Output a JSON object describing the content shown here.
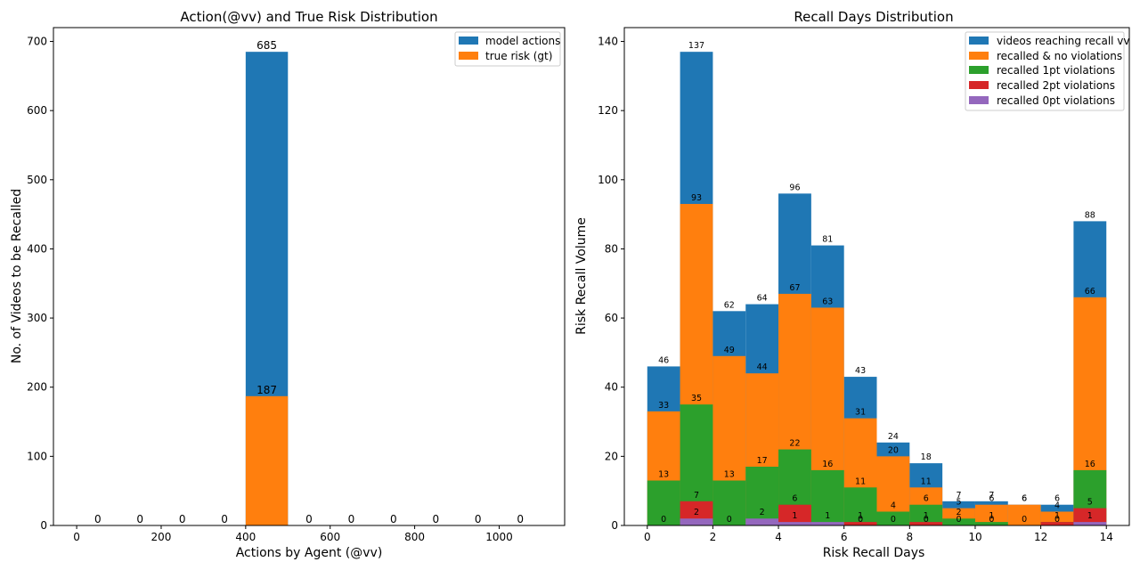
{
  "colors": {
    "blue": "#1f77b4",
    "orange": "#ff7f0e",
    "green": "#2ca02c",
    "red": "#d62728",
    "purple": "#9467bd"
  },
  "chart_data": [
    {
      "type": "bar",
      "title": "Action(@vv) and True Risk Distribution",
      "xlabel": "Actions by Agent (@vv)",
      "ylabel": "No. of Videos to be Recalled",
      "xlim": [
        -55,
        1155
      ],
      "ylim": [
        0,
        720
      ],
      "xticks": [
        0,
        200,
        400,
        600,
        800,
        1000,
        1200
      ],
      "yticks": [
        0,
        100,
        200,
        300,
        400,
        500,
        600,
        700
      ],
      "xtick_labels": [
        "0",
        "200",
        "400",
        "600",
        "800",
        "1000"
      ],
      "ytick_labels": [
        "0",
        "100",
        "200",
        "300",
        "400",
        "500",
        "600",
        "700"
      ],
      "bin_edges": [
        0,
        100,
        200,
        300,
        400,
        500,
        600,
        700,
        800,
        900,
        1000,
        1100
      ],
      "legend_position": "top-right",
      "series": [
        {
          "name": "model actions",
          "color_key": "blue",
          "values": [
            0,
            0,
            0,
            0,
            685,
            0,
            0,
            0,
            0,
            0,
            0
          ]
        },
        {
          "name": "true risk (gt)",
          "color_key": "orange",
          "values": [
            0,
            0,
            0,
            0,
            187,
            0,
            0,
            0,
            0,
            0,
            0
          ]
        }
      ],
      "data_labels": [
        {
          "x": 50,
          "y": 0,
          "text": "0"
        },
        {
          "x": 150,
          "y": 0,
          "text": "0"
        },
        {
          "x": 250,
          "y": 0,
          "text": "0"
        },
        {
          "x": 350,
          "y": 0,
          "text": "0"
        },
        {
          "x": 450,
          "y": 685,
          "text": "685"
        },
        {
          "x": 450,
          "y": 187,
          "text": "187"
        },
        {
          "x": 550,
          "y": 0,
          "text": "0"
        },
        {
          "x": 650,
          "y": 0,
          "text": "0"
        },
        {
          "x": 750,
          "y": 0,
          "text": "0"
        },
        {
          "x": 850,
          "y": 0,
          "text": "0"
        },
        {
          "x": 950,
          "y": 0,
          "text": "0"
        },
        {
          "x": 1050,
          "y": 0,
          "text": "0"
        }
      ]
    },
    {
      "type": "bar",
      "title": "Recall Days Distribution",
      "xlabel": "Risk Recall Days",
      "ylabel": "Risk Recall Volume",
      "xlim": [
        -0.7,
        14.7
      ],
      "ylim": [
        0,
        144
      ],
      "xticks": [
        0,
        2,
        4,
        6,
        8,
        10,
        12,
        14
      ],
      "yticks": [
        0,
        20,
        40,
        60,
        80,
        100,
        120,
        140
      ],
      "xtick_labels": [
        "0",
        "2",
        "4",
        "6",
        "8",
        "10",
        "12",
        "14"
      ],
      "ytick_labels": [
        "0",
        "20",
        "40",
        "60",
        "80",
        "100",
        "120",
        "140"
      ],
      "bin_edges": [
        0,
        1,
        2,
        3,
        4,
        5,
        6,
        7,
        8,
        9,
        10,
        11,
        12,
        13,
        14
      ],
      "legend_position": "top-right",
      "series": [
        {
          "name": "videos reaching recall vv",
          "color_key": "blue",
          "values": [
            46,
            137,
            62,
            64,
            96,
            81,
            43,
            24,
            18,
            7,
            7,
            6,
            6,
            88
          ]
        },
        {
          "name": "recalled & no violations",
          "color_key": "orange",
          "values": [
            33,
            93,
            49,
            44,
            67,
            63,
            31,
            20,
            11,
            5,
            6,
            6,
            4,
            66
          ]
        },
        {
          "name": "recalled 1pt violations",
          "color_key": "green",
          "values": [
            13,
            35,
            13,
            17,
            22,
            16,
            11,
            4,
            6,
            2,
            1,
            0,
            1,
            16
          ]
        },
        {
          "name": "recalled 2pt violations",
          "color_key": "red",
          "values": [
            0,
            7,
            0,
            0,
            6,
            0,
            1,
            0,
            1,
            0,
            0,
            0,
            1,
            5
          ]
        },
        {
          "name": "recalled 0pt violations",
          "color_key": "purple",
          "values": [
            0,
            2,
            0,
            2,
            1,
            1,
            0,
            0,
            0,
            0,
            0,
            0,
            0,
            1
          ]
        }
      ],
      "data_labels": [
        {
          "x": 0.5,
          "y": 46,
          "text": "46"
        },
        {
          "x": 0.5,
          "y": 33,
          "text": "33"
        },
        {
          "x": 0.5,
          "y": 13,
          "text": "13"
        },
        {
          "x": 0.5,
          "y": 0,
          "text": "0"
        },
        {
          "x": 1.5,
          "y": 137,
          "text": "137"
        },
        {
          "x": 1.5,
          "y": 93,
          "text": "93"
        },
        {
          "x": 1.5,
          "y": 35,
          "text": "35"
        },
        {
          "x": 1.5,
          "y": 7,
          "text": "7"
        },
        {
          "x": 1.5,
          "y": 2,
          "text": "2"
        },
        {
          "x": 2.5,
          "y": 62,
          "text": "62"
        },
        {
          "x": 2.5,
          "y": 49,
          "text": "49"
        },
        {
          "x": 2.5,
          "y": 13,
          "text": "13"
        },
        {
          "x": 2.5,
          "y": 0,
          "text": "0"
        },
        {
          "x": 3.5,
          "y": 64,
          "text": "64"
        },
        {
          "x": 3.5,
          "y": 44,
          "text": "44"
        },
        {
          "x": 3.5,
          "y": 17,
          "text": "17"
        },
        {
          "x": 3.5,
          "y": 2,
          "text": "2"
        },
        {
          "x": 4.5,
          "y": 96,
          "text": "96"
        },
        {
          "x": 4.5,
          "y": 67,
          "text": "67"
        },
        {
          "x": 4.5,
          "y": 22,
          "text": "22"
        },
        {
          "x": 4.5,
          "y": 6,
          "text": "6"
        },
        {
          "x": 4.5,
          "y": 1,
          "text": "1"
        },
        {
          "x": 5.5,
          "y": 81,
          "text": "81"
        },
        {
          "x": 5.5,
          "y": 63,
          "text": "63"
        },
        {
          "x": 5.5,
          "y": 16,
          "text": "16"
        },
        {
          "x": 5.5,
          "y": 1,
          "text": "1"
        },
        {
          "x": 6.5,
          "y": 43,
          "text": "43"
        },
        {
          "x": 6.5,
          "y": 31,
          "text": "31"
        },
        {
          "x": 6.5,
          "y": 11,
          "text": "11"
        },
        {
          "x": 6.5,
          "y": 1,
          "text": "1"
        },
        {
          "x": 6.5,
          "y": 0,
          "text": "0"
        },
        {
          "x": 7.5,
          "y": 24,
          "text": "24"
        },
        {
          "x": 7.5,
          "y": 20,
          "text": "20"
        },
        {
          "x": 7.5,
          "y": 4,
          "text": "4"
        },
        {
          "x": 7.5,
          "y": 0,
          "text": "0"
        },
        {
          "x": 8.5,
          "y": 18,
          "text": "18"
        },
        {
          "x": 8.5,
          "y": 11,
          "text": "11"
        },
        {
          "x": 8.5,
          "y": 6,
          "text": "6"
        },
        {
          "x": 8.5,
          "y": 1,
          "text": "1"
        },
        {
          "x": 8.5,
          "y": 0,
          "text": "0"
        },
        {
          "x": 9.5,
          "y": 7,
          "text": "7"
        },
        {
          "x": 9.5,
          "y": 5,
          "text": "5"
        },
        {
          "x": 9.5,
          "y": 2,
          "text": "2"
        },
        {
          "x": 9.5,
          "y": 0,
          "text": "0"
        },
        {
          "x": 10.5,
          "y": 7,
          "text": "7"
        },
        {
          "x": 10.5,
          "y": 6,
          "text": "6"
        },
        {
          "x": 10.5,
          "y": 1,
          "text": "1"
        },
        {
          "x": 10.5,
          "y": 0,
          "text": "0"
        },
        {
          "x": 11.5,
          "y": 6,
          "text": "6"
        },
        {
          "x": 11.5,
          "y": 6,
          "text": "6"
        },
        {
          "x": 11.5,
          "y": 0,
          "text": "0"
        },
        {
          "x": 12.5,
          "y": 6,
          "text": "6"
        },
        {
          "x": 12.5,
          "y": 4,
          "text": "4"
        },
        {
          "x": 12.5,
          "y": 1,
          "text": "1"
        },
        {
          "x": 12.5,
          "y": 0,
          "text": "0"
        },
        {
          "x": 13.5,
          "y": 88,
          "text": "88"
        },
        {
          "x": 13.5,
          "y": 66,
          "text": "66"
        },
        {
          "x": 13.5,
          "y": 16,
          "text": "16"
        },
        {
          "x": 13.5,
          "y": 5,
          "text": "5"
        },
        {
          "x": 13.5,
          "y": 1,
          "text": "1"
        }
      ]
    }
  ]
}
